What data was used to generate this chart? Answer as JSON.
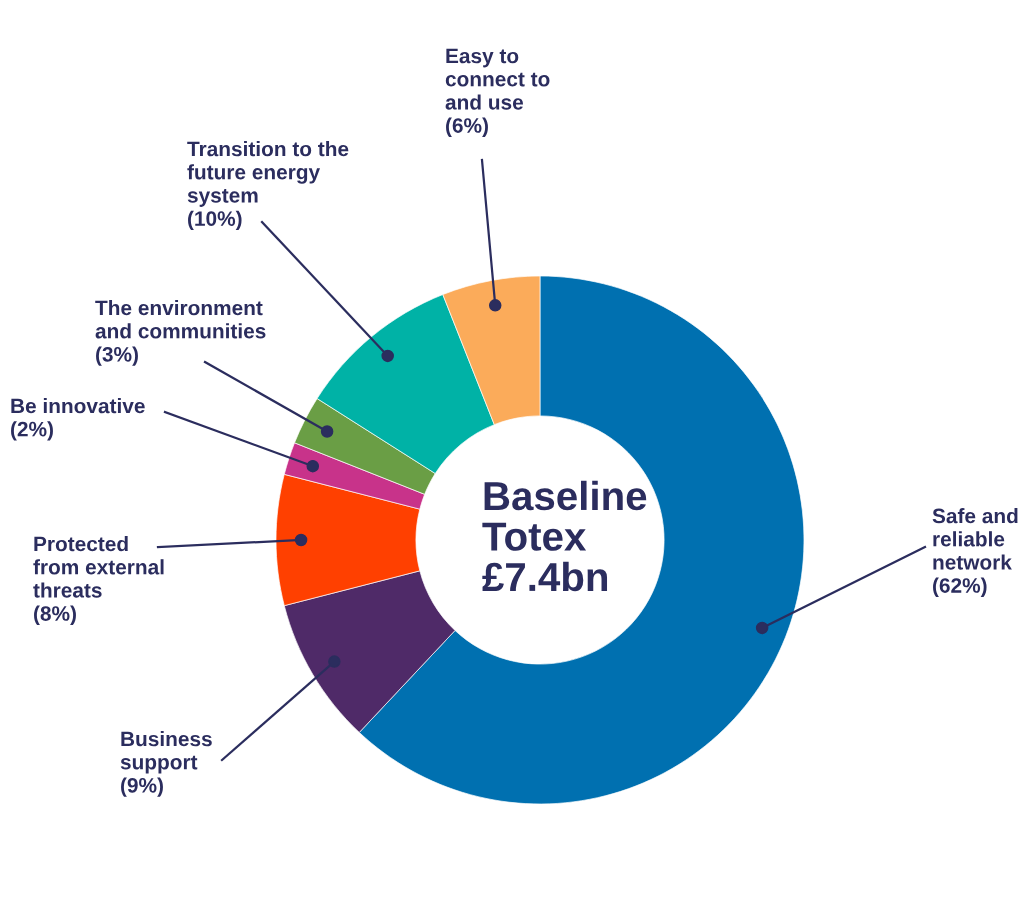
{
  "chart_data": {
    "type": "donut",
    "categories": [
      "Safe and\nreliable\nnetwork",
      "Business\nsupport",
      "Protected\nfrom external\nthreats",
      "Be innovative",
      "The environment\nand communities",
      "Transition to the\nfuture energy\nsystem",
      "Easy to\nconnect to\nand use"
    ],
    "values": [
      62,
      9,
      8,
      2,
      3,
      10,
      6
    ],
    "value_labels": [
      "(62%)",
      "(9%)",
      "(8%)",
      "(2%)",
      "(3%)",
      "(10%)",
      "(6%)"
    ],
    "colors": [
      "#0070b0",
      "#4f2a68",
      "#ff4000",
      "#c8338a",
      "#6a9e45",
      "#00b2a6",
      "#fbab5a"
    ],
    "annotations": [
      "Baseline\nTotex\n£7.4bn"
    ]
  }
}
